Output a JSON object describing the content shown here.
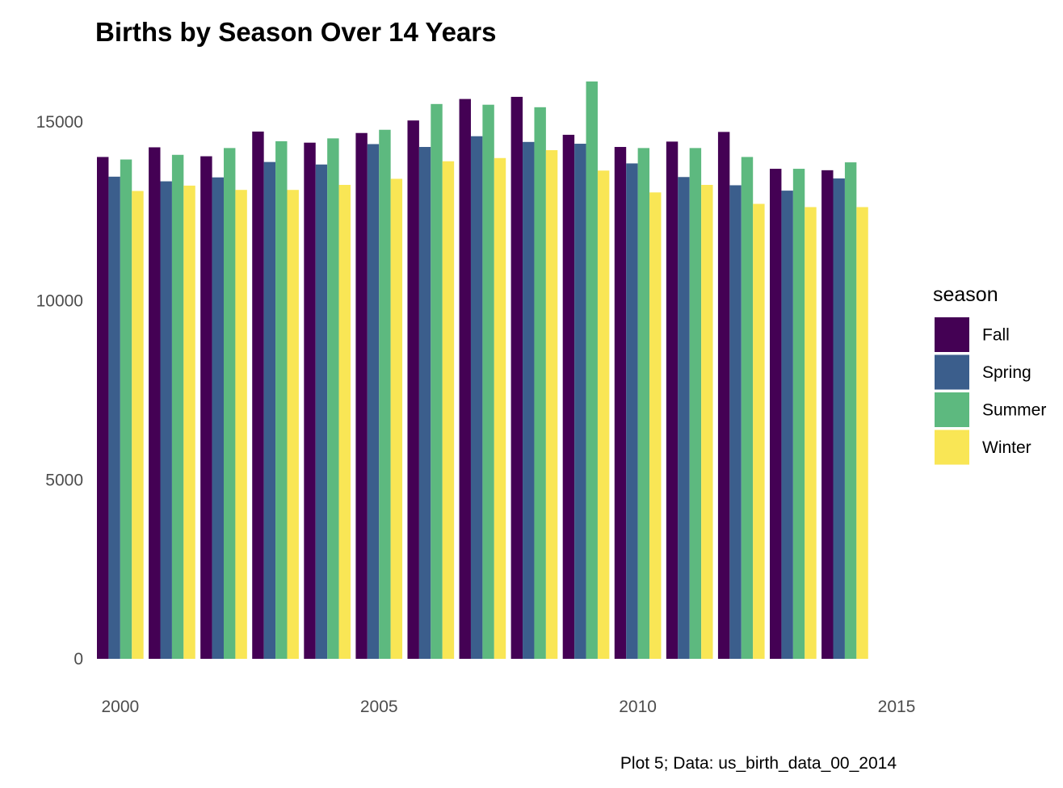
{
  "chart_data": {
    "type": "bar",
    "title": "Births by Season Over 14 Years",
    "caption": "Plot 5; Data: us_birth_data_00_2014",
    "xlabel": "",
    "ylabel": "",
    "x": [
      2000,
      2001,
      2002,
      2003,
      2004,
      2005,
      2006,
      2007,
      2008,
      2009,
      2010,
      2011,
      2012,
      2013,
      2014
    ],
    "xlim": [
      1999.55,
      2015.0
    ],
    "ylim": [
      0,
      16150
    ],
    "x_ticks": [
      2000,
      2005,
      2010,
      2015
    ],
    "x_tick_labels": [
      "2000",
      "2005",
      "2010",
      "2015"
    ],
    "y_ticks": [
      0,
      5000,
      10000,
      15000
    ],
    "y_tick_labels": [
      "0",
      "5000",
      "10000",
      "15000"
    ],
    "grid": false,
    "legend_title": "season",
    "legend_position": "right",
    "series": [
      {
        "name": "Fall",
        "color": "#440154",
        "values": [
          14020,
          14290,
          14040,
          14730,
          14420,
          14690,
          15040,
          15640,
          15700,
          14640,
          14300,
          14450,
          14720,
          13690,
          13650
        ]
      },
      {
        "name": "Spring",
        "color": "#3B5E8C",
        "values": [
          13470,
          13340,
          13450,
          13880,
          13810,
          14380,
          14300,
          14600,
          14440,
          14390,
          13840,
          13460,
          13230,
          13080,
          13420
        ]
      },
      {
        "name": "Summer",
        "color": "#5DB97F",
        "values": [
          13950,
          14080,
          14270,
          14460,
          14540,
          14780,
          15500,
          15480,
          15410,
          16130,
          14270,
          14270,
          14020,
          13690,
          13870
        ]
      },
      {
        "name": "Winter",
        "color": "#F9E655",
        "values": [
          13070,
          13220,
          13100,
          13100,
          13240,
          13410,
          13900,
          13990,
          14210,
          13640,
          13030,
          13240,
          12710,
          12620,
          12620
        ]
      }
    ]
  }
}
